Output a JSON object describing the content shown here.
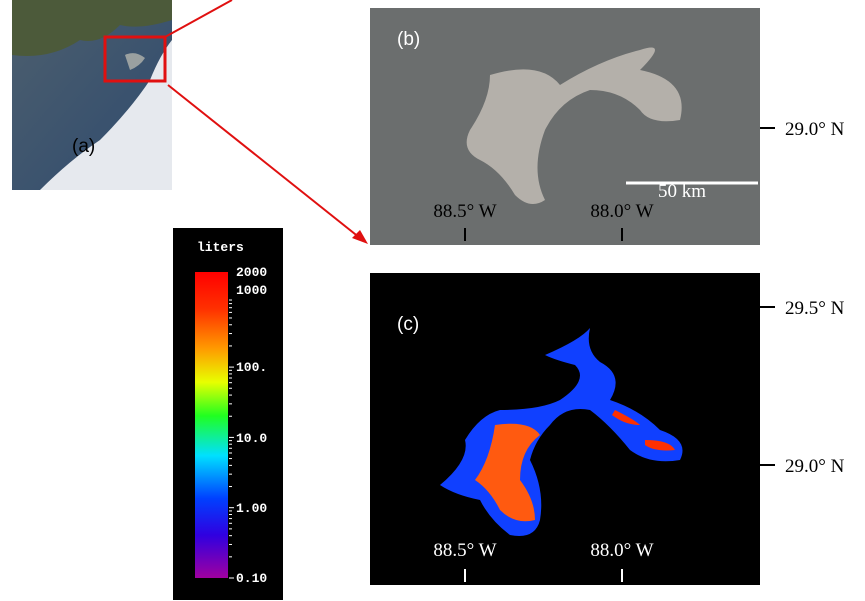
{
  "panels": {
    "a": {
      "label": "(a)"
    },
    "b": {
      "label": "(b)",
      "lon_labels": [
        "88.5° W",
        "88.0° W"
      ],
      "scale_bar": "50 km",
      "lat_labels": [
        "29.0° N"
      ]
    },
    "c": {
      "label": "(c)",
      "lon_labels": [
        "88.5° W",
        "88.0° W"
      ],
      "lat_labels": [
        "29.5° N",
        "29.0° N"
      ]
    }
  },
  "colorbar": {
    "title": "liters",
    "labels": [
      "2000",
      "1000",
      "100.",
      "10.0",
      "1.00",
      "0.10"
    ]
  }
}
